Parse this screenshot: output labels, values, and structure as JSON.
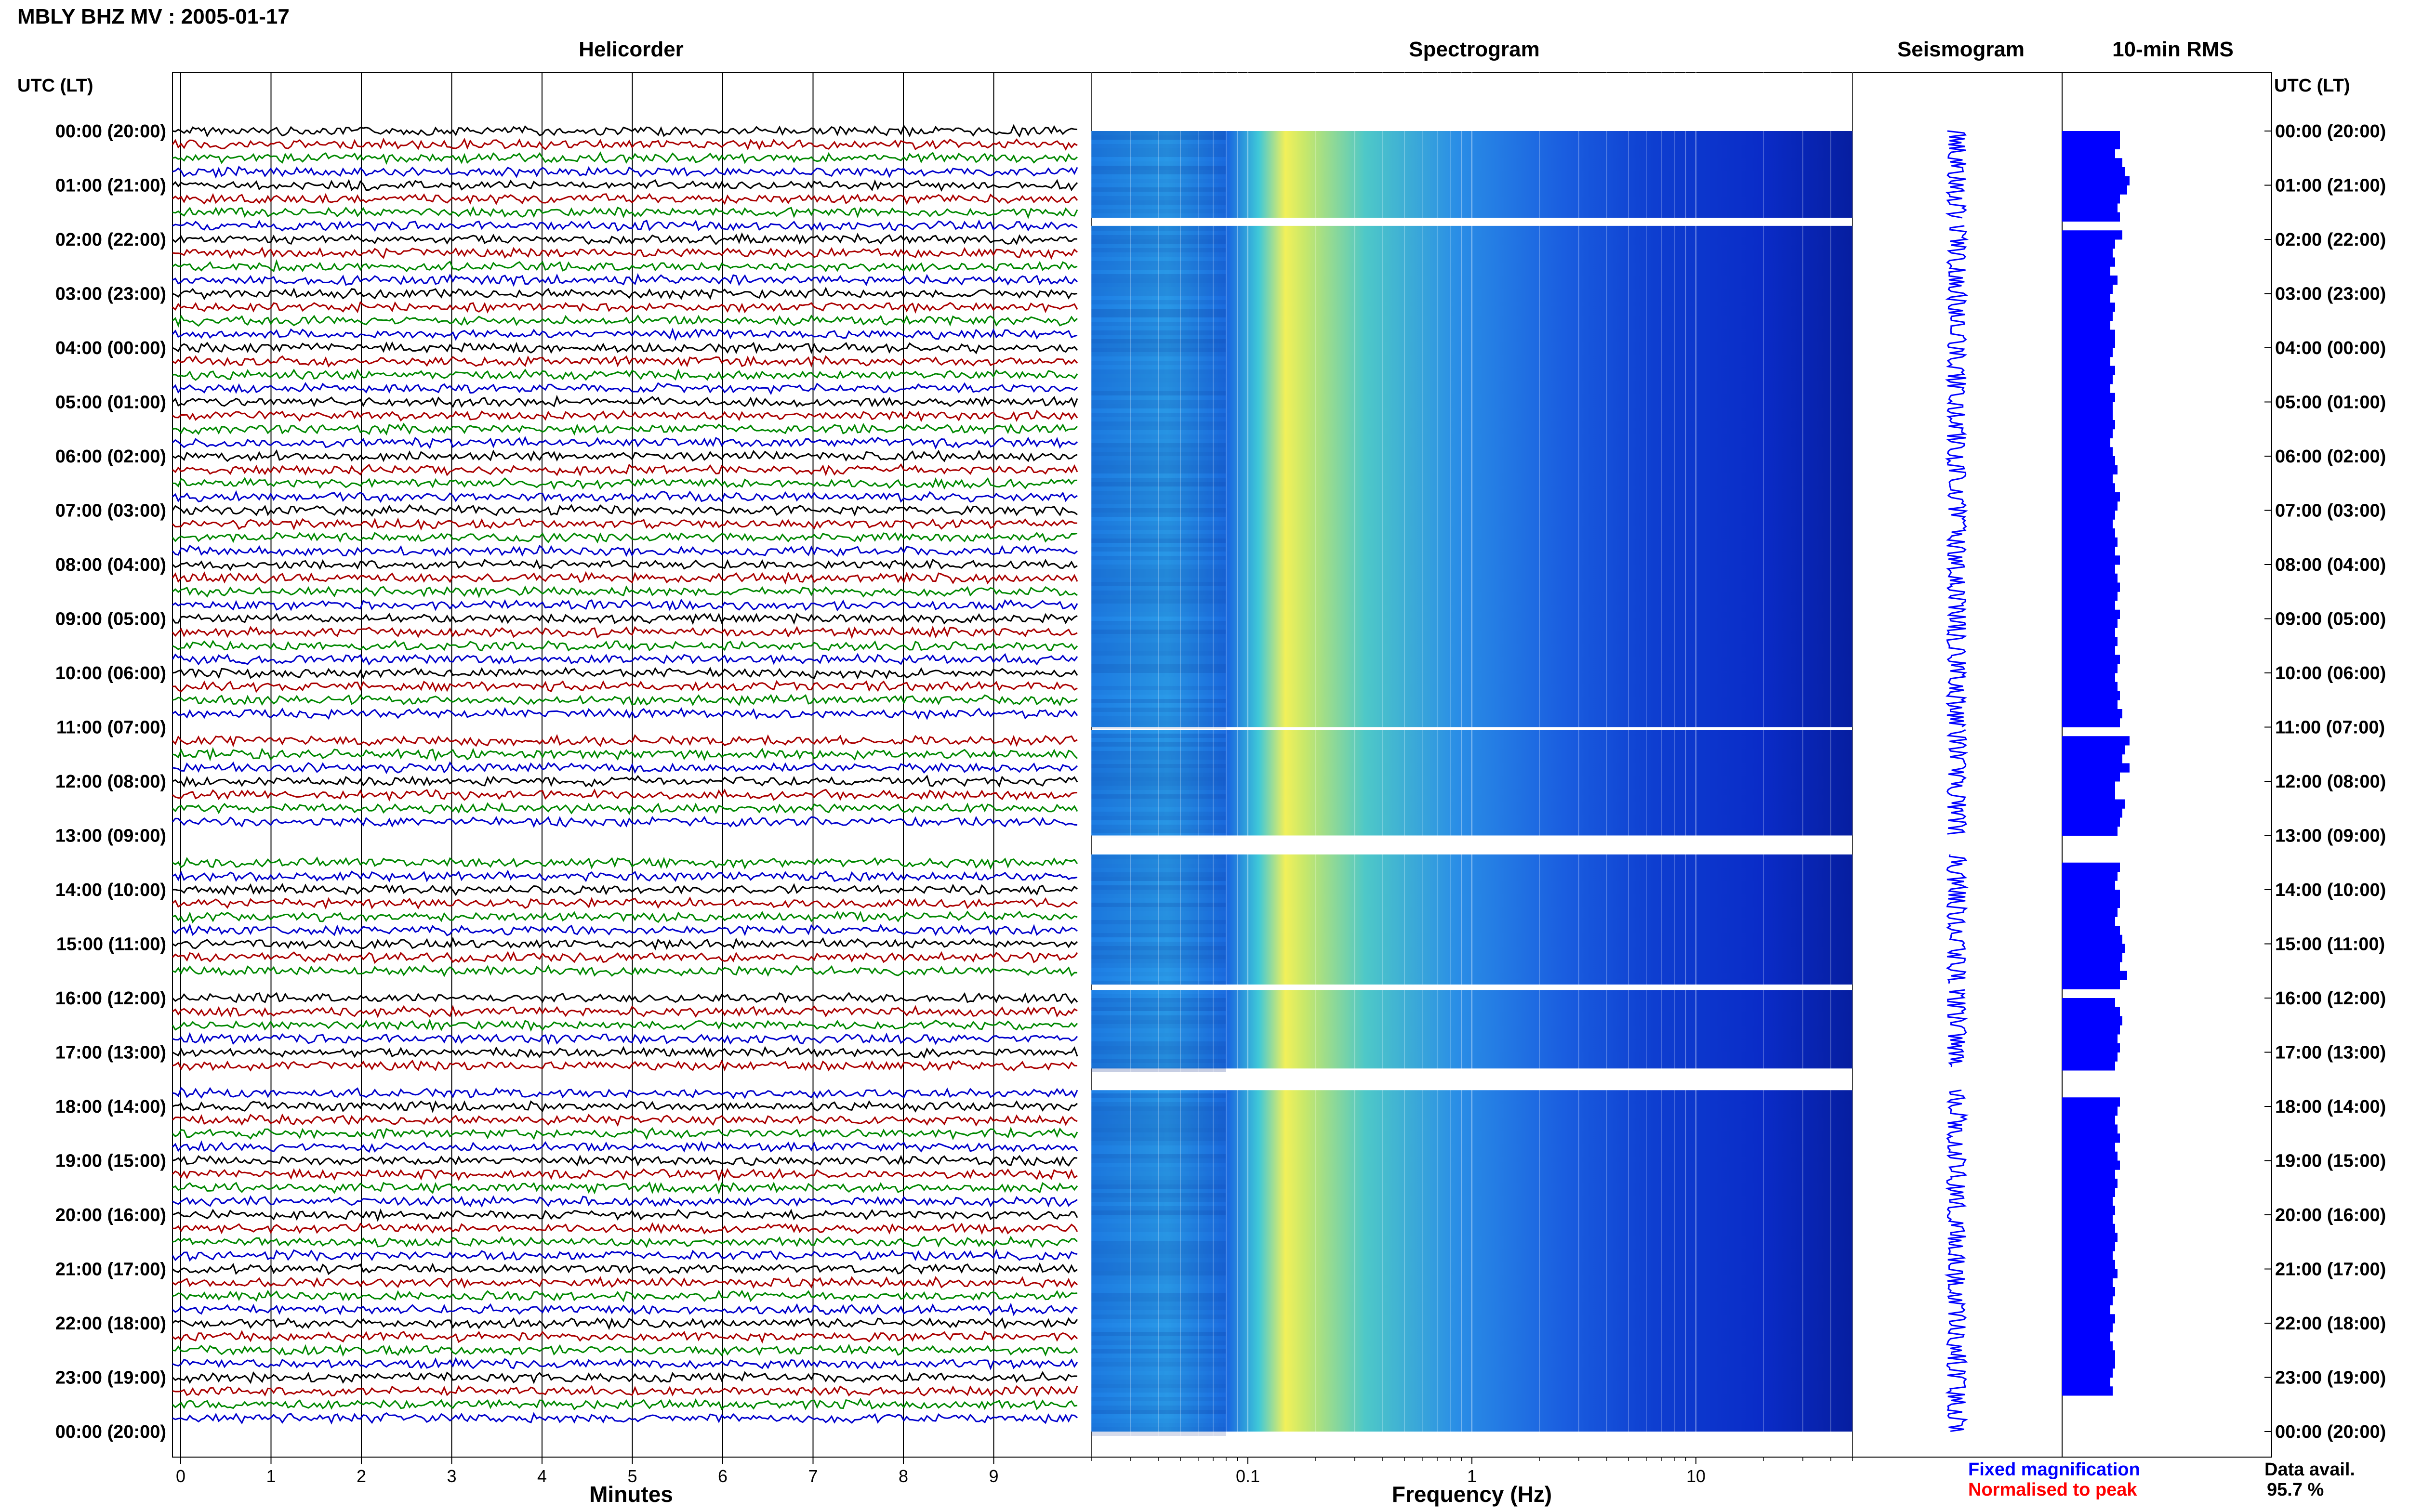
{
  "header": {
    "title": "MBLY BHZ MV : 2005-01-17"
  },
  "panels": {
    "helicorder": "Helicorder",
    "spectrogram": "Spectrogram",
    "seismogram": "Seismogram",
    "rms": "10-min RMS"
  },
  "axis": {
    "left_header": "UTC (LT)",
    "right_header": "UTC (LT)",
    "minutes_label": "Minutes",
    "frequency_label": "Frequency (Hz)"
  },
  "legend": {
    "fixed": "Fixed magnification",
    "normalised": "Normalised to peak",
    "fixed_color": "#0000ff",
    "normalised_color": "#ff0000"
  },
  "availability": {
    "label": "Data avail.",
    "value": "95.7 %"
  },
  "chart_data": {
    "type": "heatmap",
    "time_labels": [
      "00:00 (20:00)",
      "01:00 (21:00)",
      "02:00 (22:00)",
      "03:00 (23:00)",
      "04:00 (00:00)",
      "05:00 (01:00)",
      "06:00 (02:00)",
      "07:00 (03:00)",
      "08:00 (04:00)",
      "09:00 (05:00)",
      "10:00 (06:00)",
      "11:00 (07:00)",
      "12:00 (08:00)",
      "13:00 (09:00)",
      "14:00 (10:00)",
      "15:00 (11:00)",
      "16:00 (12:00)",
      "17:00 (13:00)",
      "18:00 (14:00)",
      "19:00 (15:00)",
      "20:00 (16:00)",
      "21:00 (17:00)",
      "22:00 (18:00)",
      "23:00 (19:00)",
      "00:00 (20:00)"
    ],
    "minutes_ticks": [
      "0",
      "1",
      "2",
      "3",
      "4",
      "5",
      "6",
      "7",
      "8",
      "9"
    ],
    "frequency_ticks": [
      "0.1",
      "1",
      "10"
    ],
    "frequency_scale": "log",
    "frequency_range_hz": [
      0.02,
      50
    ],
    "trace_colors": [
      "#000000",
      "#aa0000",
      "#008800",
      "#0000cc"
    ],
    "data_gaps_utc_hours": [
      [
        1.6,
        1.75
      ],
      [
        11.0,
        11.05
      ],
      [
        13.0,
        13.35
      ],
      [
        15.75,
        15.85
      ],
      [
        17.3,
        17.7
      ]
    ],
    "rms_values": [
      1.2,
      1.2,
      1.1,
      1.25,
      1.3,
      1.4,
      1.35,
      1.2,
      1.15,
      1.2,
      1.1,
      1.25,
      1.1,
      1.05,
      1.1,
      1.0,
      1.15,
      1.05,
      1.0,
      1.1,
      1.05,
      1.0,
      1.1,
      1.1,
      1.05,
      1.0,
      1.1,
      1.05,
      1.0,
      1.1,
      1.05,
      1.05,
      1.1,
      1.05,
      1.0,
      1.05,
      1.1,
      1.15,
      1.05,
      1.1,
      1.2,
      1.15,
      1.1,
      1.05,
      1.1,
      1.15,
      1.1,
      1.2,
      1.1,
      1.15,
      1.2,
      1.15,
      1.1,
      1.2,
      1.15,
      1.1,
      1.15,
      1.1,
      1.2,
      1.15,
      1.1,
      1.15,
      1.2,
      1.15,
      1.25,
      1.2,
      1.55,
      1.4,
      1.3,
      1.25,
      1.4,
      1.2,
      1.1,
      1.1,
      1.3,
      1.25,
      1.2,
      1.15,
      1.1,
      1.15,
      1.15,
      1.2,
      1.15,
      1.1,
      1.2,
      1.2,
      1.15,
      1.1,
      1.2,
      1.25,
      1.3,
      1.25,
      1.2,
      1.35,
      1.2,
      1.15,
      1.1,
      1.2,
      1.25,
      1.2,
      1.15,
      1.2,
      1.15,
      1.1,
      1.15,
      1.2,
      1.25,
      1.2,
      1.15,
      1.1,
      1.15,
      1.2,
      1.1,
      1.15,
      1.2,
      1.1,
      1.15,
      1.1,
      1.05,
      1.1,
      1.05,
      1.1,
      1.15,
      1.1,
      1.05,
      1.1,
      1.15,
      1.05,
      1.1,
      1.05,
      1.0,
      1.1,
      1.05,
      1.0,
      1.05,
      1.1,
      1.1,
      1.05,
      1.0,
      1.05
    ]
  }
}
